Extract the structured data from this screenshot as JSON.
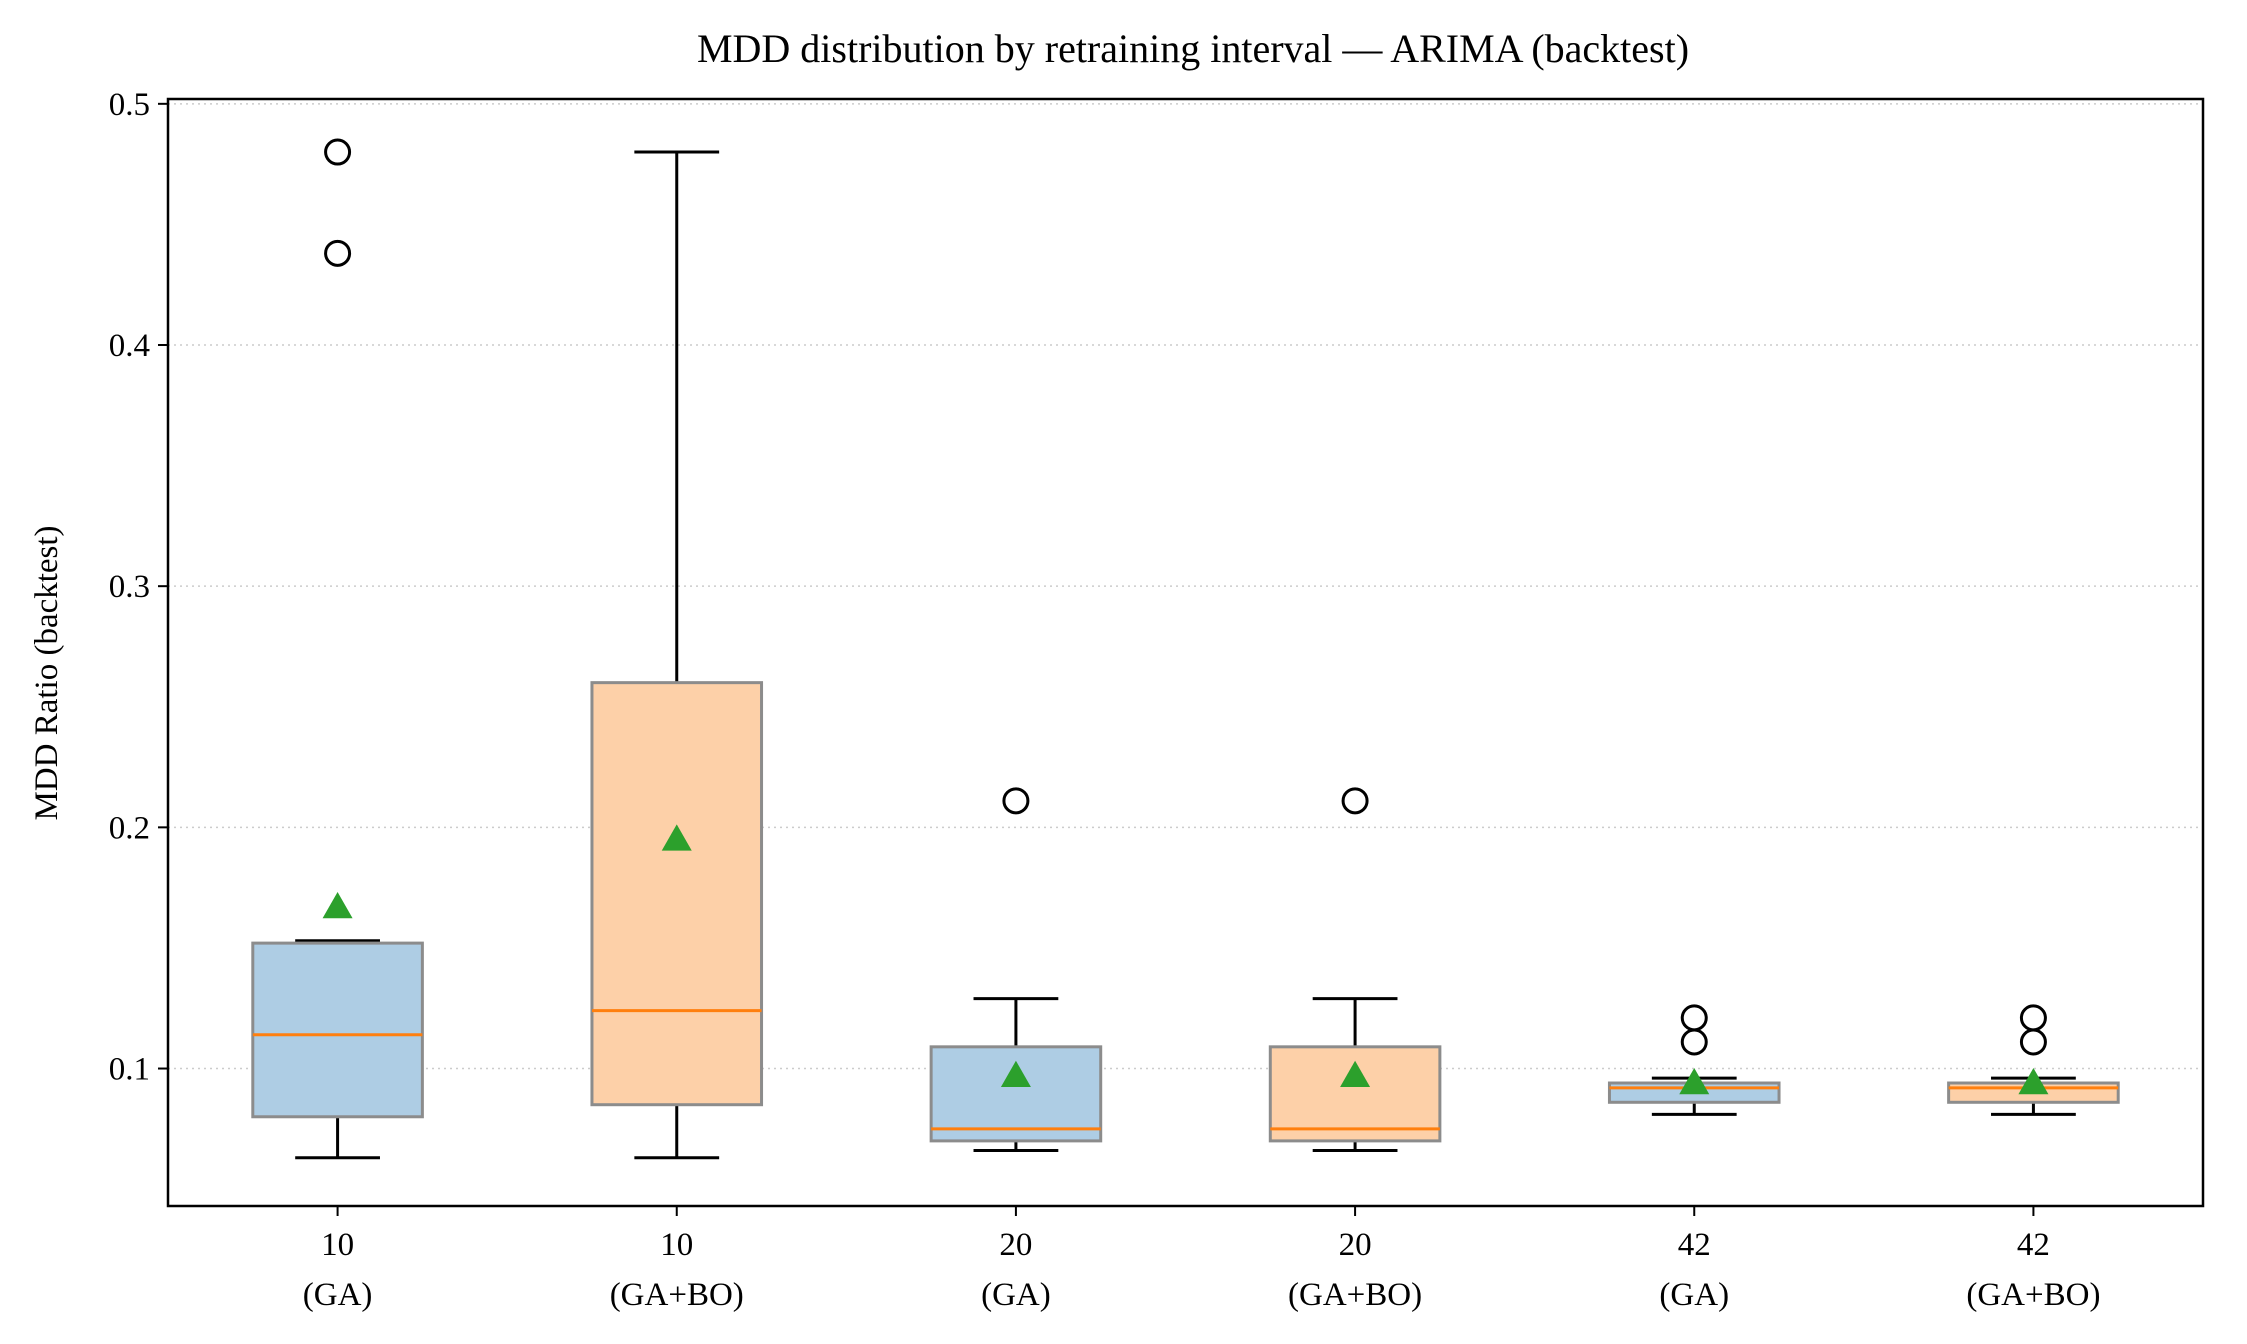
{
  "chart_data": {
    "type": "box",
    "title": "MDD distribution by retraining interval — ARIMA (backtest)",
    "xlabel": "",
    "ylabel": "MDD Ratio (backtest)",
    "ylim": [
      0.043,
      0.502
    ],
    "yticks": [
      "0.1",
      "0.2",
      "0.3",
      "0.4",
      "0.5"
    ],
    "grid": "horizontal dotted",
    "colors": {
      "GA": "#aecde4",
      "GA+BO": "#fdd0a8",
      "box_edge": "#8c8c8c",
      "median": "#ff7f0e",
      "mean_marker": "#2ca02c",
      "whisker": "#000000"
    },
    "categories": [
      {
        "line1": "10",
        "line2": "(GA)",
        "group": "GA",
        "whisker_low": 0.063,
        "q1": 0.08,
        "median": 0.114,
        "q3": 0.152,
        "whisker_high": 0.153,
        "mean": 0.167,
        "outliers": [
          0.438,
          0.48
        ]
      },
      {
        "line1": "10",
        "line2": "(GA+BO)",
        "group": "GA+BO",
        "whisker_low": 0.063,
        "q1": 0.085,
        "median": 0.124,
        "q3": 0.26,
        "whisker_high": 0.48,
        "mean": 0.195,
        "outliers": []
      },
      {
        "line1": "20",
        "line2": "(GA)",
        "group": "GA",
        "whisker_low": 0.066,
        "q1": 0.07,
        "median": 0.075,
        "q3": 0.109,
        "whisker_high": 0.129,
        "mean": 0.097,
        "outliers": [
          0.211
        ]
      },
      {
        "line1": "20",
        "line2": "(GA+BO)",
        "group": "GA+BO",
        "whisker_low": 0.066,
        "q1": 0.07,
        "median": 0.075,
        "q3": 0.109,
        "whisker_high": 0.129,
        "mean": 0.097,
        "outliers": [
          0.211
        ]
      },
      {
        "line1": "42",
        "line2": "(GA)",
        "group": "GA",
        "whisker_low": 0.081,
        "q1": 0.086,
        "median": 0.092,
        "q3": 0.094,
        "whisker_high": 0.096,
        "mean": 0.094,
        "outliers": [
          0.111,
          0.121
        ]
      },
      {
        "line1": "42",
        "line2": "(GA+BO)",
        "group": "GA+BO",
        "whisker_low": 0.081,
        "q1": 0.086,
        "median": 0.092,
        "q3": 0.094,
        "whisker_high": 0.096,
        "mean": 0.094,
        "outliers": [
          0.111,
          0.121
        ]
      }
    ]
  }
}
